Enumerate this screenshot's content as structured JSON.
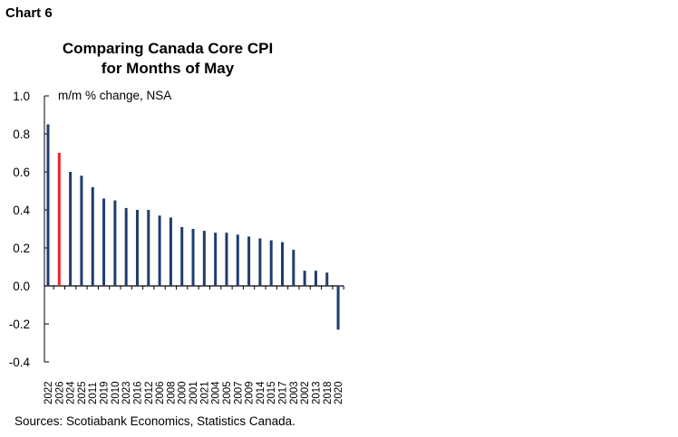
{
  "header": {
    "chart_label": "Chart 6"
  },
  "chart_data": {
    "type": "bar",
    "title": "Comparing Canada Core CPI for Months of May",
    "title_lines": [
      "Comparing Canada Core CPI",
      "for Months of May"
    ],
    "ylabel": "m/m % change, NSA",
    "xlabel": "",
    "ylim": [
      -0.4,
      1.0
    ],
    "yticks": [
      1.0,
      0.8,
      0.6,
      0.4,
      0.2,
      0.0,
      -0.2,
      -0.4
    ],
    "ytick_labels": [
      "1.0",
      "0.8",
      "0.6",
      "0.4",
      "0.2",
      "0.0",
      "-0.2",
      "-0.4"
    ],
    "categories": [
      "2022",
      "2026",
      "2024",
      "2025",
      "2011",
      "2019",
      "2010",
      "2023",
      "2016",
      "2012",
      "2006",
      "2008",
      "2000",
      "2001",
      "2021",
      "2004",
      "2005",
      "2007",
      "2009",
      "2014",
      "2015",
      "2017",
      "2003",
      "2002",
      "2013",
      "2018",
      "2020"
    ],
    "values": [
      0.85,
      0.7,
      0.6,
      0.58,
      0.52,
      0.46,
      0.45,
      0.41,
      0.4,
      0.4,
      0.37,
      0.36,
      0.31,
      0.3,
      0.29,
      0.28,
      0.28,
      0.27,
      0.26,
      0.25,
      0.24,
      0.23,
      0.19,
      0.08,
      0.08,
      0.07,
      -0.23
    ],
    "highlight_category": "2026",
    "colors": {
      "bar": "#1f3d6e",
      "highlight": "#e8242c",
      "axis": "#000000"
    },
    "grid": false
  },
  "footer": {
    "source": "Sources: Scotiabank Economics, Statistics Canada."
  }
}
